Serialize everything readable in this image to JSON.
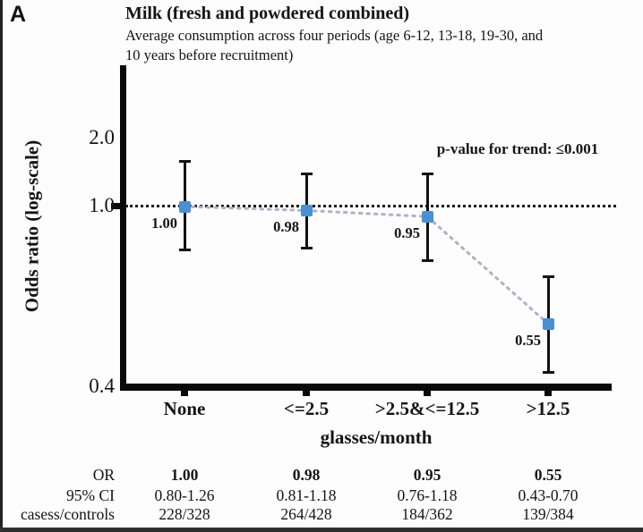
{
  "panel_label": "A",
  "header": {
    "title": "Milk (fresh and powdered combined)",
    "subtitle_line1": "Average consumption across four periods (age 6-12, 13-18, 19-30, and",
    "subtitle_line2": "10 years before recruitment)"
  },
  "annotation": {
    "p_value_text": "p-value for trend: ≤0.001"
  },
  "axes": {
    "y_label": "Odds ratio (log-scale)",
    "y_ticks": [
      "2.0",
      "1.0",
      "0.4"
    ],
    "x_label": "glasses/month",
    "x_categories": [
      "None",
      "<=2.5",
      ">2.5&<=12.5",
      ">12.5"
    ]
  },
  "chart_data": {
    "type": "scatter",
    "title": "Milk (fresh and powdered combined)",
    "subtitle": "Average consumption across four periods (age 6-12, 13-18, 19-30, and 10 years before recruitment)",
    "categories": [
      "None",
      "<=2.5",
      ">2.5&<=12.5",
      ">12.5"
    ],
    "x_axis_label": "glasses/month",
    "y_axis_label": "Odds ratio (log-scale)",
    "y_scale": "log",
    "y_tick_values": [
      2.0,
      1.0,
      0.4
    ],
    "ylim": [
      0.4,
      2.6
    ],
    "reference_line_y": 1.0,
    "grid": false,
    "p_value_for_trend": "≤0.001",
    "series": [
      {
        "name": "Odds ratio",
        "values": [
          1.0,
          0.98,
          0.95,
          0.55
        ],
        "ci_low": [
          0.8,
          0.81,
          0.76,
          0.43
        ],
        "ci_high": [
          1.26,
          1.18,
          1.18,
          0.7
        ],
        "point_labels": [
          "1.00",
          "0.98",
          "0.95",
          "0.55"
        ]
      }
    ],
    "cases_controls": [
      "228/328",
      "264/428",
      "184/362",
      "139/384"
    ]
  },
  "table": {
    "rows": [
      {
        "label": "OR",
        "values": [
          "1.00",
          "0.98",
          "0.95",
          "0.55"
        ],
        "bold": true
      },
      {
        "label": "95% CI",
        "values": [
          "0.80-1.26",
          "0.81-1.18",
          "0.76-1.18",
          "0.43-0.70"
        ],
        "bold": false
      },
      {
        "label": "casess/controls",
        "values": [
          "228/328",
          "264/428",
          "184/362",
          "139/384"
        ],
        "bold": false
      }
    ]
  },
  "colors": {
    "marker": "#4a8fd4",
    "error_bar": "#111111",
    "connector": "#b6aec8",
    "reference_line": "#1a1a1a",
    "axis": "#0a0a0a"
  }
}
